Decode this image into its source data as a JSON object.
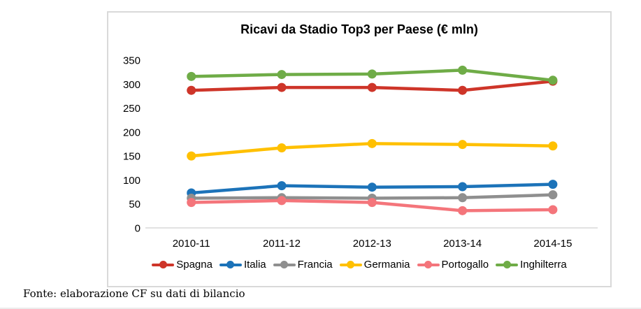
{
  "footer": {
    "source_text": "Fonte: elaborazione CF su dati di bilancio"
  },
  "chart_data": {
    "type": "line",
    "title": "Ricavi da Stadio Top3 per Paese (€ mln)",
    "categories": [
      "2010-11",
      "2011-12",
      "2012-13",
      "2013-14",
      "2014-15"
    ],
    "series": [
      {
        "name": "Spagna",
        "color": "#ce3529",
        "values": [
          287,
          293,
          293,
          287,
          306
        ]
      },
      {
        "name": "Italia",
        "color": "#1c73b9",
        "values": [
          73,
          88,
          85,
          86,
          91
        ]
      },
      {
        "name": "Francia",
        "color": "#8f8f8f",
        "values": [
          62,
          63,
          62,
          63,
          69
        ]
      },
      {
        "name": "Germania",
        "color": "#ffc000",
        "values": [
          150,
          167,
          176,
          174,
          171
        ]
      },
      {
        "name": "Portogallo",
        "color": "#f4757b",
        "values": [
          53,
          57,
          53,
          36,
          38
        ]
      },
      {
        "name": "Inghilterra",
        "color": "#6fac47",
        "values": [
          316,
          320,
          321,
          329,
          308
        ]
      }
    ],
    "ylim": [
      0,
      350
    ],
    "ytick_step": 50,
    "grid": false,
    "legend_position": "bottom",
    "axis_color": "#d9d9d9"
  }
}
